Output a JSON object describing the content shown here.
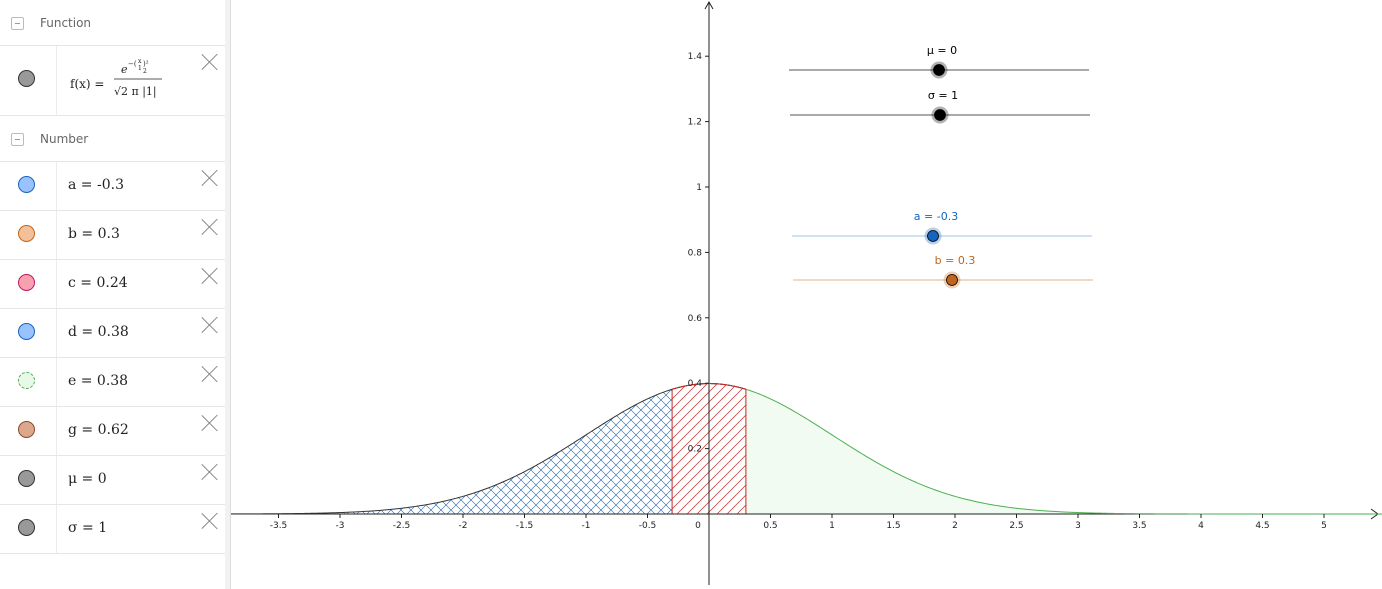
{
  "algebra": {
    "function_group": {
      "title": "Function"
    },
    "function": {
      "label": "f(x) =",
      "numerator_base": "e",
      "exponent": "−(",
      "exp_fraction_numer": "x",
      "exp_fraction_denom": "1",
      "exp_close": ")²",
      "exp_over": "2",
      "denominator": "√2 π |1|",
      "marble_color": "#999999"
    },
    "number_group": {
      "title": "Number"
    },
    "numbers": [
      {
        "text": "a = -0.3",
        "marble_color": "#99c2ff",
        "border": "#1565c0"
      },
      {
        "text": "b = 0.3",
        "marble_color": "#f4c09a",
        "border": "#c0651b"
      },
      {
        "text": "c = 0.24",
        "marble_color": "#f7a0b0",
        "border": "#c2185b"
      },
      {
        "text": "d = 0.38",
        "marble_color": "#99c2ff",
        "border": "#1565c0"
      },
      {
        "text": "e = 0.38",
        "marble_color": "#e8f9e8",
        "border": "#4caf50"
      },
      {
        "text": "g = 0.62",
        "marble_color": "#dba88e",
        "border": "#8d4a2f"
      },
      {
        "text": "μ = 0",
        "marble_color": "#999999",
        "border": "#333333"
      },
      {
        "text": "σ = 1",
        "marble_color": "#999999",
        "border": "#333333"
      }
    ]
  },
  "graph": {
    "x_ticks": [
      "-3.5",
      "-3",
      "-2.5",
      "-2",
      "-1.5",
      "-1",
      "-0.5",
      "0",
      "0.5",
      "1",
      "1.5",
      "2",
      "2.5",
      "3",
      "3.5",
      "4",
      "4.5",
      "5"
    ],
    "x_tick_values": [
      -3.5,
      -3,
      -2.5,
      -2,
      -1.5,
      -1,
      -0.5,
      0,
      0.5,
      1,
      1.5,
      2,
      2.5,
      3,
      3.5,
      4,
      4.5,
      5
    ],
    "y_ticks": [
      "0.2",
      "0.4",
      "0.6",
      "0.8",
      "1",
      "1.2",
      "1.4"
    ],
    "y_tick_values": [
      0.2,
      0.4,
      0.6,
      0.8,
      1,
      1.2,
      1.4
    ],
    "mu": 0,
    "sigma": 1,
    "a": -0.3,
    "b": 0.3,
    "colors": {
      "curve": "#333333",
      "left_hatch": "#1e5fa8",
      "middle_hatch": "#c62828",
      "right_fill": "#f1fbf1",
      "right_curve": "#4caf50",
      "axis": "#222222"
    }
  },
  "sliders": [
    {
      "label": "μ = 0",
      "value": 0,
      "min": -5,
      "max": 5,
      "color": "#000000",
      "line": "#555555"
    },
    {
      "label": "σ = 1",
      "value": 1,
      "min": 0,
      "max": 2,
      "color": "#000000",
      "line": "#555555"
    },
    {
      "label": "a = -0.3",
      "value": -0.3,
      "min": -5,
      "max": 5,
      "color": "#1565c0",
      "line": "#9fc3e6"
    },
    {
      "label": "b = 0.3",
      "value": 0.3,
      "min": -5,
      "max": 5,
      "color": "#c0651b",
      "line": "#e0b48f"
    }
  ]
}
